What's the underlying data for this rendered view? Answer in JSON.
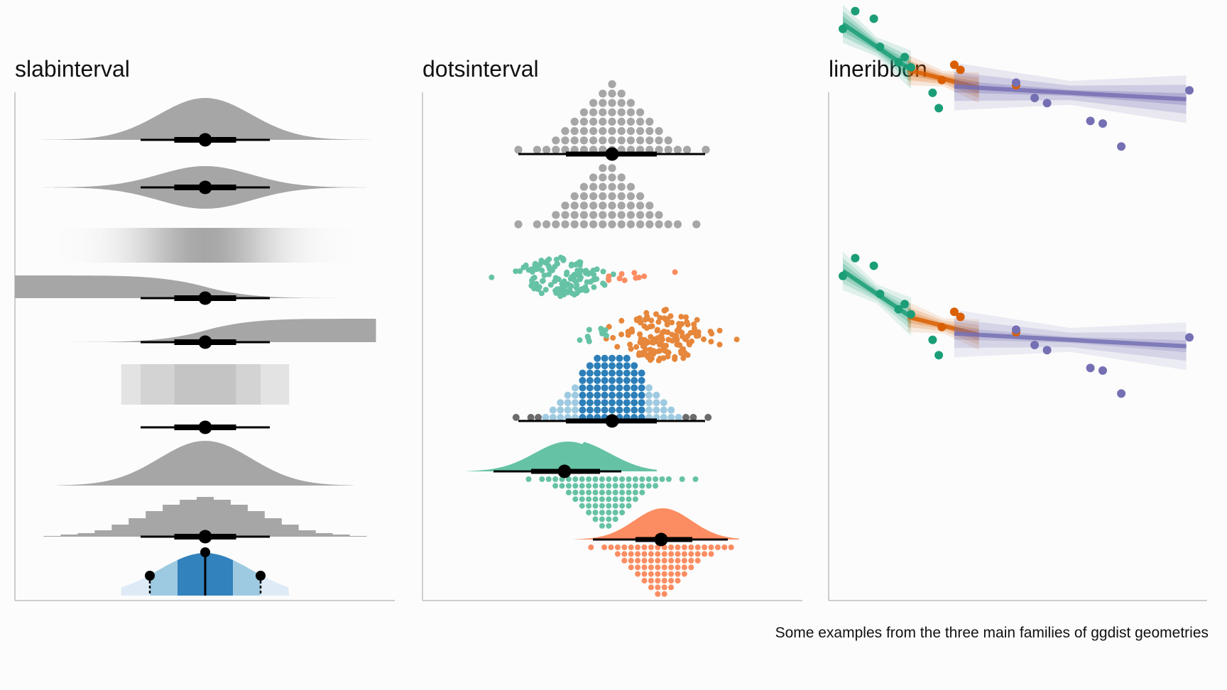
{
  "panels": [
    {
      "title": "slabinterval"
    },
    {
      "title": "dotsinterval"
    },
    {
      "title": "lineribbon"
    }
  ],
  "caption": "Some examples from the three main families of ggdist geometries",
  "colors": {
    "gray": "#a6a6a6",
    "interval": "#000000",
    "axis": "#bdbdbd",
    "green": "#1b9e77",
    "orange": "#d95f02",
    "purple": "#7570b3",
    "green_light": "#66c2a5",
    "orange_light": "#fc8d62",
    "blue": "#3182bd",
    "blue_mid": "#9ecae1",
    "blue_light": "#deebf7"
  },
  "chart_data": [
    {
      "type": "slabinterval",
      "title": "slabinterval",
      "rows": [
        {
          "geom": "halfeye",
          "point": 0,
          "inner": [
            -0.67,
            0.67
          ],
          "outer": [
            -1.4,
            1.4
          ]
        },
        {
          "geom": "eye",
          "point": 0,
          "inner": [
            -0.67,
            0.67
          ],
          "outer": [
            -1.4,
            1.4
          ]
        },
        {
          "geom": "gradientinterval",
          "point": 0
        },
        {
          "geom": "ccdfinterval",
          "point": 0,
          "inner": [
            -0.67,
            0.67
          ],
          "outer": [
            -1.4,
            1.4
          ]
        },
        {
          "geom": "cdfinterval",
          "point": 0,
          "inner": [
            -0.67,
            0.67
          ],
          "outer": [
            -1.4,
            1.4
          ]
        },
        {
          "geom": "interval (filled)",
          "point": 0,
          "inner": [
            -0.67,
            0.67
          ],
          "outer": [
            -1.4,
            1.4
          ]
        },
        {
          "geom": "pointinterval",
          "point": 0,
          "inner": [
            -0.67,
            0.67
          ],
          "outer": [
            -1.4,
            1.4
          ]
        },
        {
          "geom": "slab",
          "point": 0
        },
        {
          "geom": "histinterval",
          "point": 0,
          "inner": [
            -0.67,
            0.67
          ],
          "outer": [
            -1.4,
            1.4
          ]
        },
        {
          "geom": "slab (shaded interval)",
          "point": 0,
          "inner": [
            -0.67,
            0.67
          ],
          "outer": [
            -1.4,
            1.4
          ]
        }
      ]
    },
    {
      "type": "dotsinterval",
      "title": "dotsinterval",
      "rows": [
        {
          "geom": "dotsinterval",
          "color": "gray"
        },
        {
          "geom": "dots",
          "color": "gray"
        },
        {
          "geom": "swarm",
          "groups": [
            "green",
            "orange"
          ]
        },
        {
          "geom": "swarm",
          "groups": [
            "green",
            "orange"
          ]
        },
        {
          "geom": "dotsinterval (fill by interval)",
          "color": "blue"
        },
        {
          "geom": "halfeye + dots",
          "color": "green"
        },
        {
          "geom": "halfeye + dots",
          "color": "orange"
        }
      ]
    },
    {
      "type": "line",
      "title": "lineribbon",
      "facets": [
        {
          "ribbon": "stepped"
        },
        {
          "ribbon": "gradient"
        }
      ],
      "series": [
        {
          "color": "green",
          "x": [
            0.0,
            0.2,
            0.5,
            0.6,
            0.9,
            1.0,
            1.1,
            1.45,
            1.55
          ],
          "y": [
            7.2,
            7.9,
            7.6,
            6.5,
            5.9,
            6.1,
            5.7,
            4.7,
            4.1
          ]
        },
        {
          "color": "orange",
          "x": [
            1.6,
            1.8,
            1.9,
            2.8
          ],
          "y": [
            5.2,
            5.8,
            5.6,
            5.0
          ]
        },
        {
          "color": "purple",
          "x": [
            2.8,
            3.1,
            3.3,
            4.0,
            4.2,
            4.5,
            5.6
          ],
          "y": [
            5.1,
            4.5,
            4.3,
            3.6,
            3.5,
            2.6,
            4.8
          ]
        }
      ]
    }
  ]
}
